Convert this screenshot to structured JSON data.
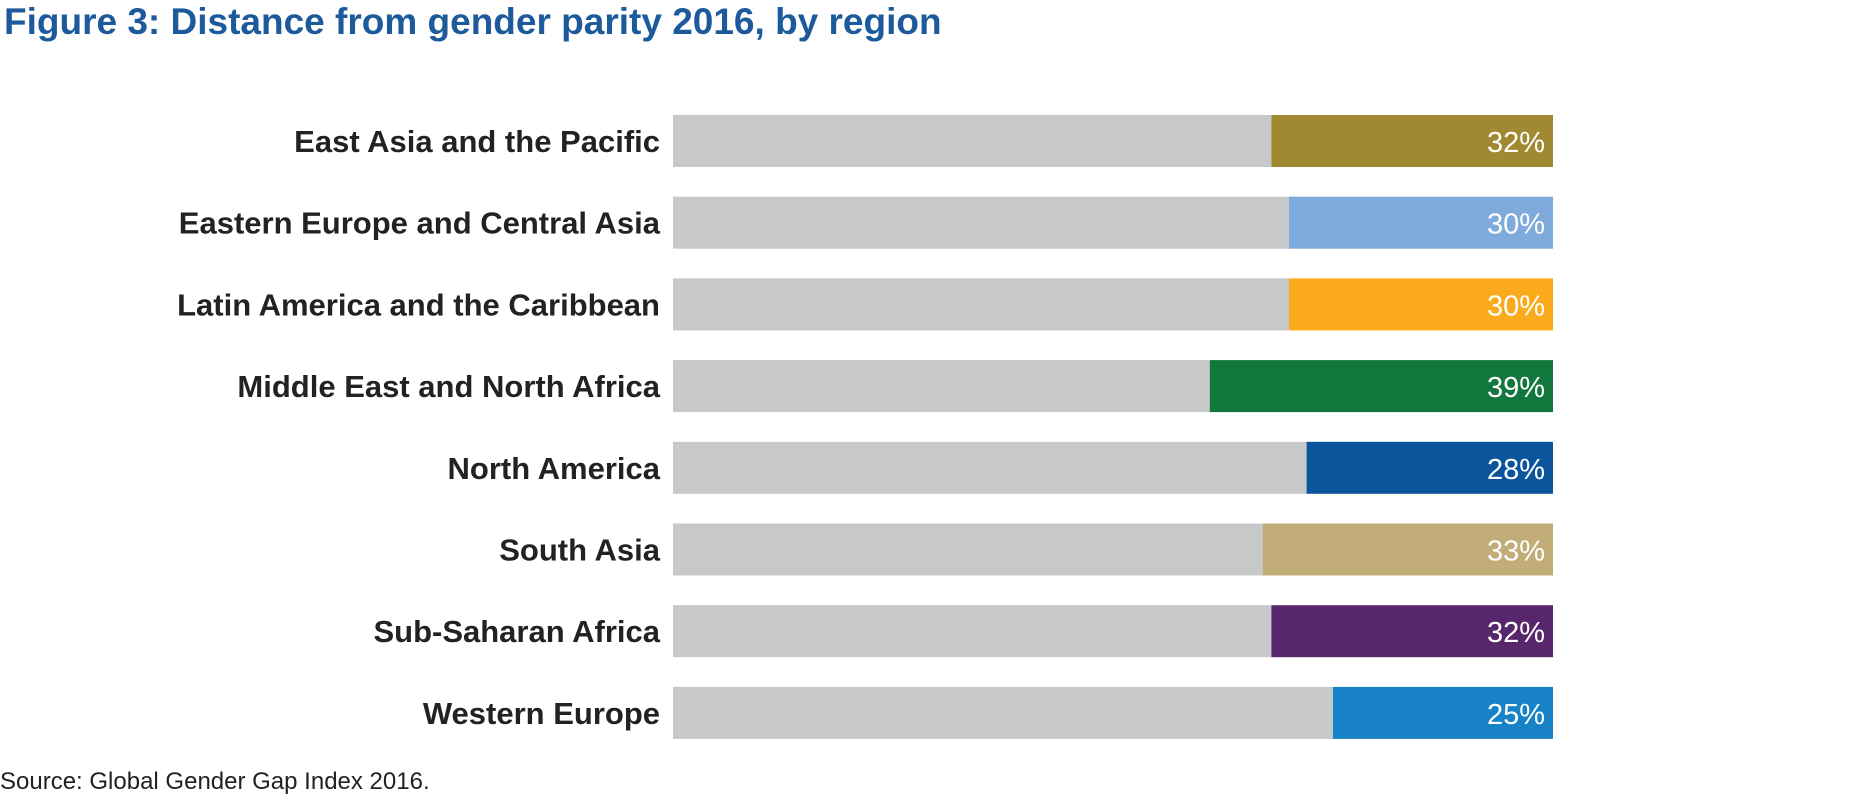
{
  "chart_data": {
    "type": "bar",
    "orientation": "horizontal",
    "stacked": true,
    "title": "Figure 3: Distance from gender parity 2016, by region",
    "source": "Source: Global Gender Gap Index 2016.",
    "categories": [
      "East Asia and the Pacific",
      "Eastern Europe and Central Asia",
      "Latin America and the Caribbean",
      "Middle East and North Africa",
      "North America",
      "South Asia",
      "Sub-Saharan Africa",
      "Western Europe"
    ],
    "values": [
      32,
      30,
      30,
      39,
      28,
      33,
      32,
      25
    ],
    "value_labels": [
      "32%",
      "30%",
      "30%",
      "39%",
      "28%",
      "33%",
      "32%",
      "25%"
    ],
    "xlim": [
      0,
      100
    ],
    "grid": false,
    "legend": "none",
    "colors": {
      "remainder": "#c7c8ca",
      "bars": [
        "#a18932",
        "#7faadc",
        "#fbaa1b",
        "#12773d",
        "#0b559d",
        "#c2ad79",
        "#58266a",
        "#1783c6"
      ],
      "title": "#1d5a9c"
    }
  }
}
